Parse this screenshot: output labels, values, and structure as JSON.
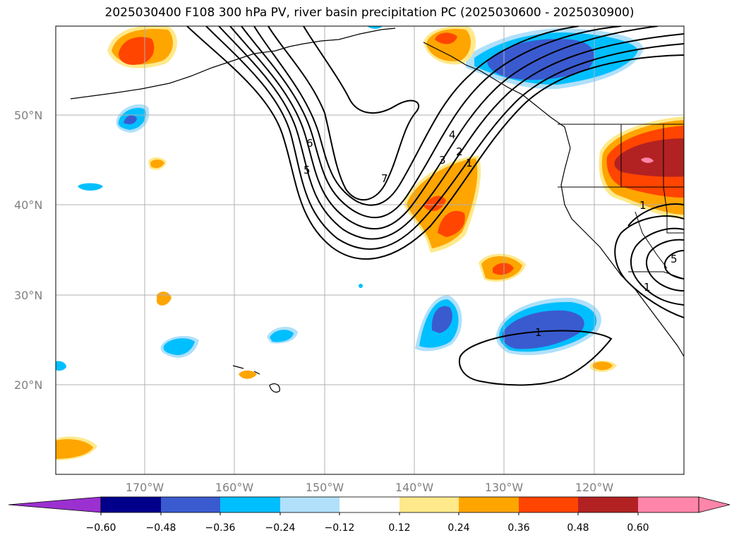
{
  "title": "2025030400 F108 300 hPa PV, river basin precipitation PC (2025030600 - 2025030900)",
  "lat_labels": [
    "50°N",
    "40°N",
    "30°N",
    "20°N"
  ],
  "lon_labels": [
    "170°W",
    "160°W",
    "150°W",
    "140°W",
    "130°W",
    "120°W"
  ],
  "pv_contour_labels": [
    "7",
    "6",
    "5",
    "4",
    "3",
    "2",
    "1",
    "1",
    "1",
    "1",
    "5"
  ],
  "colorbar": {
    "tick_labels": [
      "−0.60",
      "−0.48",
      "−0.36",
      "−0.24",
      "−0.12",
      "0.12",
      "0.24",
      "0.36",
      "0.48",
      "0.60"
    ],
    "colors": [
      "#9b30d0",
      "#00008b",
      "#3a5bd0",
      "#00bfff",
      "#b0e0fa",
      "#ffffff",
      "#ffe98a",
      "#ffa500",
      "#ff4500",
      "#b22222",
      "#ff85aa",
      "#ff85aa"
    ]
  },
  "colors": {
    "grid": "#b0b0b0",
    "contour": "#000000",
    "label_gray": "#808080"
  }
}
